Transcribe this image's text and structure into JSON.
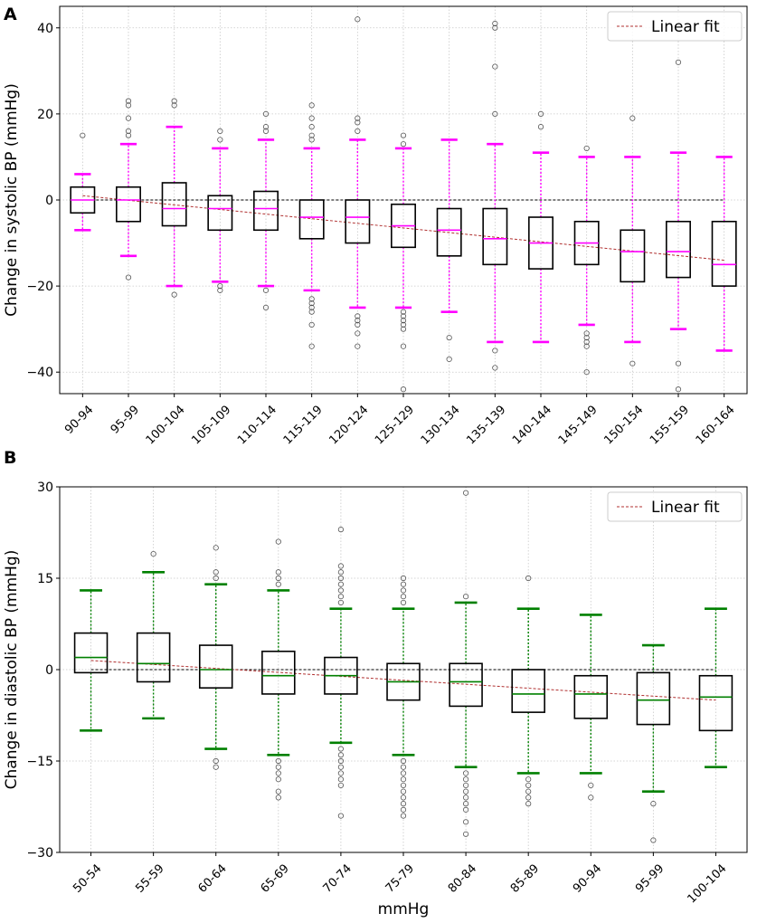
{
  "chart_data": [
    {
      "panel": "A",
      "type": "box",
      "xlabel": "",
      "ylabel": "Change in systolic BP (mmHg)",
      "ylim": [
        -45,
        45
      ],
      "yticks": [
        -40,
        -20,
        0,
        20,
        40
      ],
      "grid": true,
      "legend": {
        "label": "Linear fit",
        "position": "top-right"
      },
      "colors": {
        "whisker": "#ff00ff",
        "median": "#ff00ff",
        "box": "#000000",
        "fit": "#b03030",
        "zero": "#000000",
        "outlier": "#555555"
      },
      "categories": [
        "90-94",
        "95-99",
        "100-104",
        "105-109",
        "110-114",
        "115-119",
        "120-124",
        "125-129",
        "130-134",
        "135-139",
        "140-144",
        "145-149",
        "150-154",
        "155-159",
        "160-164"
      ],
      "boxes": [
        {
          "q1": -3,
          "median": 0,
          "q3": 3,
          "lower_whisker": -7,
          "upper_whisker": 6,
          "outliers": [
            15
          ]
        },
        {
          "q1": -5,
          "median": 0,
          "q3": 3,
          "lower_whisker": -13,
          "upper_whisker": 13,
          "outliers": [
            -18,
            15,
            16,
            19,
            22,
            23
          ]
        },
        {
          "q1": -6,
          "median": -2,
          "q3": 4,
          "lower_whisker": -20,
          "upper_whisker": 17,
          "outliers": [
            -22,
            22,
            23
          ]
        },
        {
          "q1": -7,
          "median": -2,
          "q3": 1,
          "lower_whisker": -19,
          "upper_whisker": 12,
          "outliers": [
            -20,
            -21,
            14,
            16
          ]
        },
        {
          "q1": -7,
          "median": -2,
          "q3": 2,
          "lower_whisker": -20,
          "upper_whisker": 14,
          "outliers": [
            -21,
            -25,
            16,
            17,
            20
          ]
        },
        {
          "q1": -9,
          "median": -4,
          "q3": 0,
          "lower_whisker": -21,
          "upper_whisker": 12,
          "outliers": [
            -23,
            -24,
            -25,
            -26,
            -29,
            -34,
            14,
            15,
            17,
            19,
            22
          ]
        },
        {
          "q1": -10,
          "median": -4,
          "q3": 0,
          "lower_whisker": -25,
          "upper_whisker": 14,
          "outliers": [
            -27,
            -28,
            -29,
            -31,
            -34,
            16,
            18,
            19,
            42
          ]
        },
        {
          "q1": -11,
          "median": -6,
          "q3": -1,
          "lower_whisker": -25,
          "upper_whisker": 12,
          "outliers": [
            -26,
            -27,
            -28,
            -29,
            -30,
            -34,
            -44,
            13,
            15
          ]
        },
        {
          "q1": -13,
          "median": -7,
          "q3": -2,
          "lower_whisker": -26,
          "upper_whisker": 14,
          "outliers": [
            -32,
            -37
          ]
        },
        {
          "q1": -15,
          "median": -9,
          "q3": -2,
          "lower_whisker": -33,
          "upper_whisker": 13,
          "outliers": [
            -35,
            -39,
            20,
            31,
            40,
            41
          ]
        },
        {
          "q1": -16,
          "median": -10,
          "q3": -4,
          "lower_whisker": -33,
          "upper_whisker": 11,
          "outliers": [
            17,
            20
          ]
        },
        {
          "q1": -15,
          "median": -10,
          "q3": -5,
          "lower_whisker": -29,
          "upper_whisker": 10,
          "outliers": [
            -31,
            -32,
            -33,
            -34,
            -40,
            12
          ]
        },
        {
          "q1": -19,
          "median": -12,
          "q3": -7,
          "lower_whisker": -33,
          "upper_whisker": 10,
          "outliers": [
            -38,
            19
          ]
        },
        {
          "q1": -18,
          "median": -12,
          "q3": -5,
          "lower_whisker": -30,
          "upper_whisker": 11,
          "outliers": [
            -38,
            -44,
            32
          ]
        },
        {
          "q1": -20,
          "median": -15,
          "q3": -5,
          "lower_whisker": -35,
          "upper_whisker": 10,
          "outliers": []
        }
      ],
      "linear_fit": {
        "start": 1,
        "end": -14
      }
    },
    {
      "panel": "B",
      "type": "box",
      "xlabel": "mmHg",
      "ylabel": "Change in diastolic BP (mmHg)",
      "ylim": [
        -30,
        30
      ],
      "yticks": [
        -30,
        -15,
        0,
        15,
        30
      ],
      "grid": true,
      "legend": {
        "label": "Linear fit",
        "position": "top-right"
      },
      "colors": {
        "whisker": "#008000",
        "median": "#008000",
        "box": "#000000",
        "fit": "#b03030",
        "zero": "#000000",
        "outlier": "#555555"
      },
      "categories": [
        "50-54",
        "55-59",
        "60-64",
        "65-69",
        "70-74",
        "75-79",
        "80-84",
        "85-89",
        "90-94",
        "95-99",
        "100-104"
      ],
      "boxes": [
        {
          "q1": -0.5,
          "median": 2,
          "q3": 6,
          "lower_whisker": -10,
          "upper_whisker": 13,
          "outliers": []
        },
        {
          "q1": -2,
          "median": 1,
          "q3": 6,
          "lower_whisker": -8,
          "upper_whisker": 16,
          "outliers": [
            19
          ]
        },
        {
          "q1": -3,
          "median": 0,
          "q3": 4,
          "lower_whisker": -13,
          "upper_whisker": 14,
          "outliers": [
            -15,
            -16,
            15,
            16,
            20
          ]
        },
        {
          "q1": -4,
          "median": -1,
          "q3": 3,
          "lower_whisker": -14,
          "upper_whisker": 13,
          "outliers": [
            -15,
            -16,
            -17,
            -18,
            -20,
            -21,
            14,
            15,
            16,
            21
          ]
        },
        {
          "q1": -4,
          "median": -1,
          "q3": 2,
          "lower_whisker": -12,
          "upper_whisker": 10,
          "outliers": [
            -13,
            -14,
            -15,
            -16,
            -17,
            -18,
            -19,
            -24,
            11,
            12,
            13,
            14,
            15,
            16,
            17,
            23
          ]
        },
        {
          "q1": -5,
          "median": -2,
          "q3": 1,
          "lower_whisker": -14,
          "upper_whisker": 10,
          "outliers": [
            -15,
            -16,
            -17,
            -18,
            -19,
            -20,
            -21,
            -22,
            -23,
            -24,
            11,
            12,
            13,
            14,
            15
          ]
        },
        {
          "q1": -6,
          "median": -2,
          "q3": 1,
          "lower_whisker": -16,
          "upper_whisker": 11,
          "outliers": [
            -17,
            -18,
            -19,
            -20,
            -21,
            -22,
            -23,
            -25,
            -27,
            12,
            29
          ]
        },
        {
          "q1": -7,
          "median": -4,
          "q3": 0,
          "lower_whisker": -17,
          "upper_whisker": 10,
          "outliers": [
            -18,
            -19,
            -20,
            -21,
            -22,
            15
          ]
        },
        {
          "q1": -8,
          "median": -4,
          "q3": -1,
          "lower_whisker": -17,
          "upper_whisker": 9,
          "outliers": [
            -19,
            -21
          ]
        },
        {
          "q1": -9,
          "median": -5,
          "q3": -0.5,
          "lower_whisker": -20,
          "upper_whisker": 4,
          "outliers": [
            -22,
            -28
          ]
        },
        {
          "q1": -10,
          "median": -4.5,
          "q3": -1,
          "lower_whisker": -16,
          "upper_whisker": 10,
          "outliers": []
        }
      ],
      "linear_fit": {
        "start": 1.5,
        "end": -5
      }
    }
  ]
}
